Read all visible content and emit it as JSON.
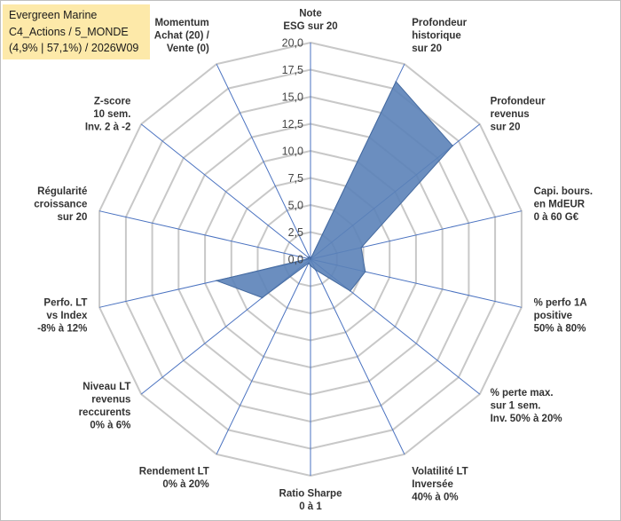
{
  "title_box": {
    "line1": "Evergreen Marine",
    "line2": "C4_Actions / 5_MONDE",
    "line3": "(4,9% | 57,1%) / 2026W09"
  },
  "chart_data": {
    "type": "radar",
    "title": "Evergreen Marine",
    "subtitle": "C4_Actions / 5_MONDE (4,9% | 57,1%) / 2026W09",
    "rlim": [
      0,
      20
    ],
    "tick_step": 2.5,
    "tick_labels": [
      "0,0",
      "2,5",
      "5,0",
      "7,5",
      "10,0",
      "12,5",
      "15,0",
      "17,5",
      "20,0"
    ],
    "axes": [
      "Note ESG sur 20",
      "Profondeur historique sur 20",
      "Profondeur revenus sur 20",
      "Capi. bours. en MdEUR 0 à 60 G€",
      "% perfo 1A positive 50% à 80%",
      "% perte max. sur 1 sem. Inv. 50% à 20%",
      "Volatilité LT Inversée 40% à 0%",
      "Ratio Sharpe 0 à 1",
      "Rendement LT 0% à 20%",
      "Niveau LT revenus reccurents 0% à 6%",
      "Perfo. LT vs Index -8% à 12%",
      "Régularité croissance sur 20",
      "Z-score 10 sem. Inv. 2 à -2",
      "Momentum Achat (20) / Vente (0)"
    ],
    "axis_label_lines": [
      [
        "Note",
        "ESG sur 20"
      ],
      [
        "Profondeur",
        "historique",
        "sur 20"
      ],
      [
        "Profondeur",
        "revenus",
        "sur 20"
      ],
      [
        "Capi. bours.",
        "en MdEUR",
        "0 à 60 G€"
      ],
      [
        "% perfo 1A",
        "positive",
        "50% à 80%"
      ],
      [
        "% perte max.",
        "sur 1 sem.",
        "Inv. 50% à 20%"
      ],
      [
        "Volatilité LT",
        "Inversée",
        "40% à 0%"
      ],
      [
        "Ratio Sharpe",
        "0 à 1"
      ],
      [
        "Rendement LT",
        "0% à 20%"
      ],
      [
        "Niveau LT",
        "revenus",
        "reccurents",
        "0% à 6%"
      ],
      [
        "Perfo. LT",
        "vs Index",
        "-8% à 12%"
      ],
      [
        "Régularité",
        "croissance",
        "sur 20"
      ],
      [
        "Z-score",
        "10 sem.",
        "Inv. 2 à -2"
      ],
      [
        "Momentum",
        "Achat (20) /",
        "Vente (0)"
      ]
    ],
    "series": [
      {
        "name": "Evergreen Marine",
        "values": [
          0,
          18.2,
          16.8,
          4.8,
          5.2,
          4.7,
          1.1,
          0.6,
          0.4,
          5.7,
          8.9,
          0.2,
          0.3,
          0.2
        ]
      }
    ],
    "grid": true,
    "colors": {
      "fill": "#5b82b8",
      "stroke": "#456a9f",
      "grid": "#c8c8c8",
      "axis": "#4a72c0",
      "title_bg": "#fde9a9"
    }
  }
}
